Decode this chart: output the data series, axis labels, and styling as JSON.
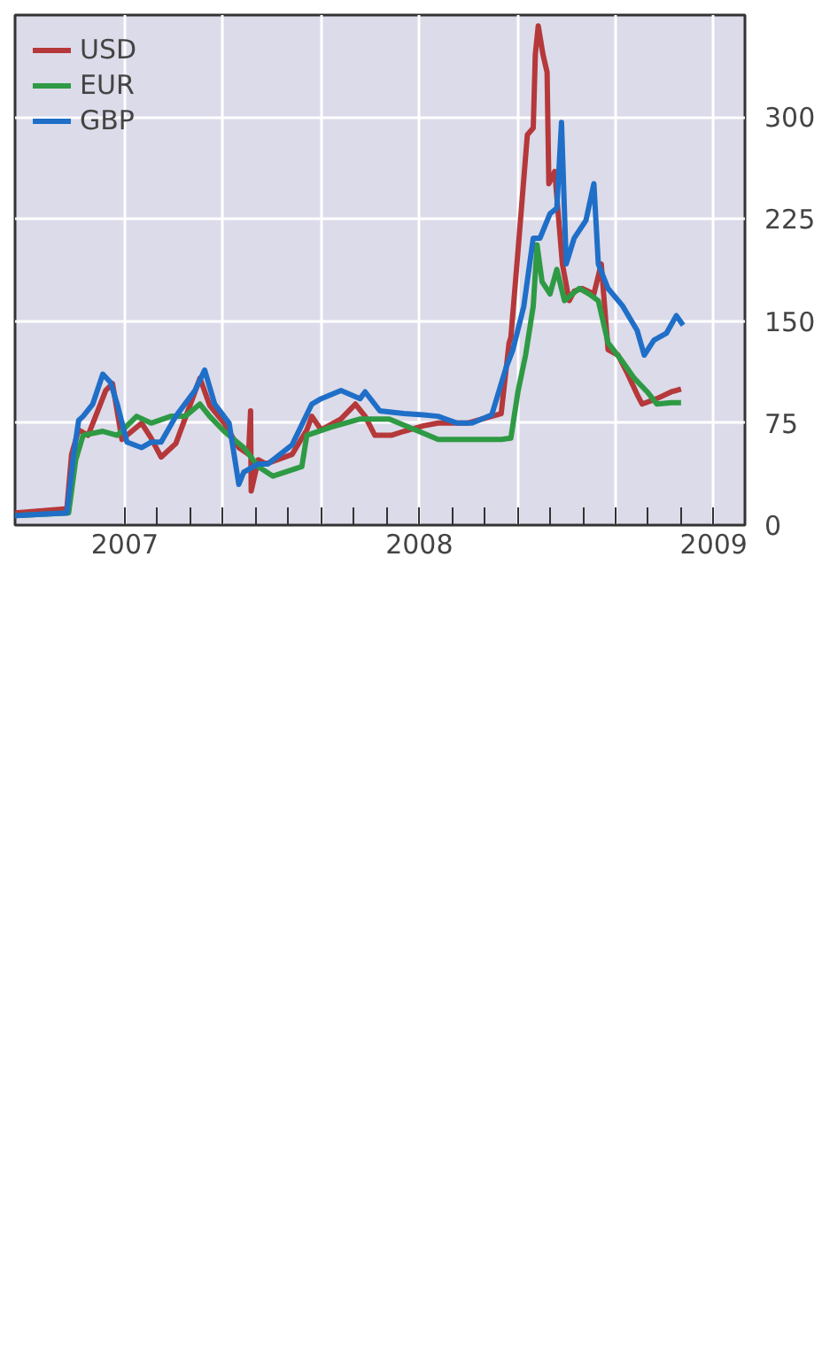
{
  "chart_data": {
    "type": "line",
    "xlim": [
      2006.627,
      2009.106
    ],
    "xticks": [
      {
        "value": 2007,
        "label": "2007"
      },
      {
        "value": 2007.333,
        "label": null
      },
      {
        "value": 2007.667,
        "label": null
      },
      {
        "value": 2008,
        "label": "2008"
      },
      {
        "value": 2008.333,
        "label": null
      },
      {
        "value": 2008.667,
        "label": null
      },
      {
        "value": 2009,
        "label": "2009"
      }
    ],
    "ylim": [
      0,
      375
    ],
    "yticks": [
      0,
      75,
      150,
      225,
      300
    ],
    "grid": true,
    "legend": "top left",
    "line_style": "solid",
    "series": [
      {
        "name": "USD",
        "color": "#b5383a",
        "x": [
          2006.627,
          2006.803,
          2006.819,
          2006.843,
          2006.875,
          2006.908,
          2006.935,
          2006.958,
          2006.99,
          2007.057,
          2007.089,
          2007.123,
          2007.173,
          2007.221,
          2007.255,
          2007.288,
          2007.337,
          2007.387,
          2007.42,
          2007.427,
          2007.429,
          2007.453,
          2007.479,
          2007.568,
          2007.618,
          2007.635,
          2007.667,
          2007.734,
          2007.783,
          2007.816,
          2007.849,
          2007.905,
          2007.948,
          2008.014,
          2008.064,
          2008.163,
          2008.246,
          2008.278,
          2008.305,
          2008.311,
          2008.335,
          2008.367,
          2008.387,
          2008.394,
          2008.404,
          2008.42,
          2008.434,
          2008.44,
          2008.46,
          2008.486,
          2008.509,
          2008.526,
          2008.553,
          2008.593,
          2008.618,
          2008.641,
          2008.675,
          2008.708,
          2008.74,
          2008.757,
          2008.807,
          2008.856,
          2008.889
        ],
        "values": [
          9,
          12,
          52,
          70,
          66,
          84,
          99,
          104,
          63,
          75,
          64,
          50,
          60,
          88,
          108,
          88,
          75,
          57,
          52,
          84,
          25,
          48,
          45,
          52,
          70,
          80,
          70,
          78,
          89,
          80,
          66,
          66,
          69,
          73,
          75,
          75,
          80,
          82,
          134,
          138,
          201,
          287,
          292,
          346,
          367,
          346,
          333,
          251,
          260,
          192,
          165,
          172,
          174,
          170,
          192,
          129,
          125,
          111,
          96,
          89,
          93,
          98,
          100
        ]
      },
      {
        "name": "EUR",
        "color": "#2e9a44",
        "x": [
          2006.627,
          2006.809,
          2006.833,
          2006.858,
          2006.925,
          2006.974,
          2007.04,
          2007.089,
          2007.156,
          2007.205,
          2007.255,
          2007.288,
          2007.337,
          2007.404,
          2007.453,
          2007.503,
          2007.601,
          2007.618,
          2007.7,
          2007.799,
          2007.898,
          2007.998,
          2008.064,
          2008.163,
          2008.278,
          2008.311,
          2008.335,
          2008.361,
          2008.387,
          2008.4,
          2008.417,
          2008.444,
          2008.467,
          2008.493,
          2008.543,
          2008.576,
          2008.608,
          2008.641,
          2008.691,
          2008.73,
          2008.774,
          2008.807,
          2008.856,
          2008.889
        ],
        "values": [
          7,
          9,
          48,
          66,
          69,
          66,
          80,
          75,
          80,
          80,
          89,
          80,
          69,
          57,
          43,
          36,
          43,
          66,
          72,
          78,
          78,
          69,
          63,
          63,
          63,
          64,
          98,
          125,
          161,
          206,
          179,
          170,
          188,
          165,
          174,
          170,
          165,
          134,
          120,
          108,
          98,
          89,
          90,
          90
        ]
      },
      {
        "name": "GBP",
        "color": "#1f6fc8",
        "x": [
          2006.627,
          2006.803,
          2006.826,
          2006.843,
          2006.858,
          2006.891,
          2006.925,
          2006.951,
          2006.974,
          2007.007,
          2007.057,
          2007.089,
          2007.123,
          2007.173,
          2007.238,
          2007.271,
          2007.305,
          2007.354,
          2007.387,
          2007.404,
          2007.453,
          2007.486,
          2007.568,
          2007.635,
          2007.667,
          2007.734,
          2007.799,
          2007.816,
          2007.866,
          2007.948,
          2008.014,
          2008.064,
          2008.129,
          2008.179,
          2008.246,
          2008.295,
          2008.318,
          2008.355,
          2008.387,
          2008.41,
          2008.444,
          2008.467,
          2008.483,
          2008.499,
          2008.526,
          2008.566,
          2008.593,
          2008.608,
          2008.641,
          2008.691,
          2008.74,
          2008.764,
          2008.797,
          2008.839,
          2008.873,
          2008.896
        ],
        "values": [
          7,
          9,
          52,
          77,
          80,
          89,
          111,
          105,
          89,
          61,
          57,
          61,
          61,
          80,
          99,
          114,
          89,
          75,
          30,
          39,
          45,
          45,
          59,
          89,
          93,
          99,
          93,
          98,
          84,
          82,
          81,
          80,
          75,
          75,
          81,
          116,
          129,
          161,
          211,
          211,
          229,
          233,
          296,
          192,
          211,
          224,
          251,
          192,
          174,
          161,
          143,
          125,
          136,
          141,
          154,
          147
        ]
      }
    ]
  }
}
